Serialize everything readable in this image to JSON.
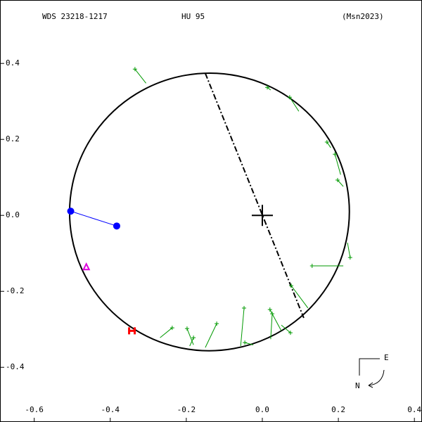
{
  "chart_data": {
    "type": "orbit",
    "title": "WDS 23218-1217",
    "subtitle": "HU   95",
    "reference": "(Msn2023)",
    "xlim": [
      -0.69,
      0.42
    ],
    "ylim": [
      -0.544,
      0.567
    ],
    "xticks": [
      -0.6,
      -0.4,
      -0.2,
      {
        "value": 0,
        "label": "0.0"
      },
      0.2,
      0.4
    ],
    "yticks": [
      0.4,
      0.2,
      {
        "value": 0,
        "label": "0.0"
      },
      -0.2,
      -0.4
    ],
    "orbit": {
      "cx": -0.139,
      "cy": 0.009,
      "rx": 0.368,
      "ry": 0.365,
      "angle": -10,
      "color": "#000000"
    },
    "line_of_nodes": {
      "x": [
        -0.15,
        0.109
      ],
      "y": [
        0.374,
        -0.27
      ]
    },
    "primary": {
      "x": 0,
      "y": 0
    },
    "positions": {
      "x": [
        -0.504,
        -0.383
      ],
      "y": [
        0.011,
        -0.028
      ],
      "color": "#0000ff"
    },
    "triangle": {
      "x": -0.463,
      "y": -0.137,
      "color": "#dd00dd"
    },
    "speckle": {
      "x": -0.343,
      "y": -0.304,
      "color": "#ff0000"
    },
    "observations": {
      "color": "#009900",
      "x": [
        -0.335,
        0.013,
        0.072,
        0.17,
        0.191,
        0.198,
        0.231,
        0.131,
        0.076,
        0.074,
        0.02,
        0.026,
        -0.048,
        -0.046,
        -0.12,
        -0.181,
        -0.198,
        -0.237
      ],
      "y": [
        0.385,
        0.337,
        0.311,
        0.193,
        0.161,
        0.093,
        -0.111,
        -0.133,
        -0.185,
        -0.309,
        -0.248,
        -0.259,
        -0.244,
        -0.335,
        -0.285,
        -0.322,
        -0.298,
        -0.296
      ],
      "orbit_x": [
        -0.306,
        0.022,
        0.096,
        0.18,
        0.206,
        0.213,
        0.224,
        0.213,
        0.12,
        0.05,
        0.05,
        0.022,
        -0.057,
        -0.024,
        -0.15,
        -0.191,
        -0.181,
        -0.269
      ],
      "orbit_y": [
        0.348,
        0.33,
        0.274,
        0.178,
        0.107,
        0.076,
        -0.072,
        -0.133,
        -0.244,
        -0.289,
        -0.304,
        -0.326,
        -0.344,
        -0.341,
        -0.348,
        -0.344,
        -0.341,
        -0.322
      ]
    },
    "compass": {
      "east": "E",
      "north": "N"
    }
  }
}
